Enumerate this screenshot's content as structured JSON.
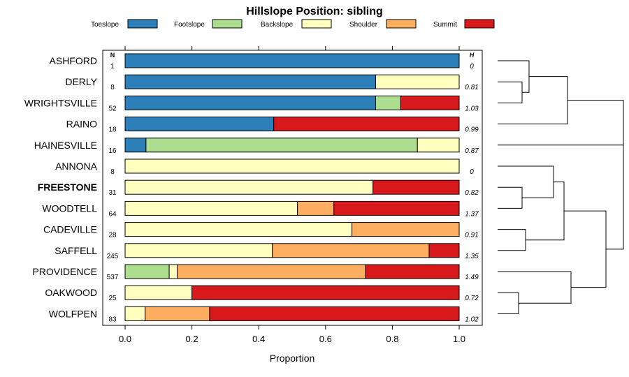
{
  "chart_data": {
    "type": "bar",
    "stacked": true,
    "orientation": "horizontal",
    "title": "Hillslope Position: sibling",
    "xlabel": "Proportion",
    "xlim": [
      0,
      1
    ],
    "xticks": [
      "0.0",
      "0.2",
      "0.4",
      "0.6",
      "0.8",
      "1.0"
    ],
    "n_header": "N",
    "h_header": "H",
    "legend_position": "top",
    "series": [
      {
        "name": "Toeslope",
        "color": "#2c7fb8"
      },
      {
        "name": "Footslope",
        "color": "#addd8e"
      },
      {
        "name": "Backslope",
        "color": "#ffffbf"
      },
      {
        "name": "Shoulder",
        "color": "#fdae61"
      },
      {
        "name": "Summit",
        "color": "#d7191c"
      }
    ],
    "categories": [
      {
        "name": "ASHFORD",
        "n": "1",
        "h": "0",
        "bold": false,
        "values": [
          1.0,
          0,
          0,
          0,
          0
        ]
      },
      {
        "name": "DERLY",
        "n": "8",
        "h": "0.81",
        "bold": false,
        "values": [
          0.75,
          0,
          0.25,
          0,
          0
        ]
      },
      {
        "name": "WRIGHTSVILLE",
        "n": "52",
        "h": "1.03",
        "bold": false,
        "values": [
          0.75,
          0.075,
          0,
          0,
          0.175
        ]
      },
      {
        "name": "RAINO",
        "n": "18",
        "h": "0.99",
        "bold": false,
        "values": [
          0.445,
          0,
          0,
          0,
          0.555
        ]
      },
      {
        "name": "HAINESVILLE",
        "n": "16",
        "h": "0.87",
        "bold": false,
        "values": [
          0.0625,
          0.8125,
          0.125,
          0,
          0
        ]
      },
      {
        "name": "ANNONA",
        "n": "8",
        "h": "0",
        "bold": false,
        "values": [
          0,
          0,
          1.0,
          0,
          0
        ]
      },
      {
        "name": "FREESTONE",
        "n": "31",
        "h": "0.82",
        "bold": true,
        "values": [
          0,
          0,
          0.742,
          0,
          0.258
        ]
      },
      {
        "name": "WOODTELL",
        "n": "64",
        "h": "1.37",
        "bold": false,
        "values": [
          0,
          0,
          0.516,
          0.109,
          0.375
        ]
      },
      {
        "name": "CADEVILLE",
        "n": "28",
        "h": "0.91",
        "bold": false,
        "values": [
          0,
          0,
          0.679,
          0.321,
          0
        ]
      },
      {
        "name": "SAFFELL",
        "n": "245",
        "h": "1.35",
        "bold": false,
        "values": [
          0,
          0,
          0.441,
          0.469,
          0.09
        ]
      },
      {
        "name": "PROVIDENCE",
        "n": "537",
        "h": "1.49",
        "bold": false,
        "values": [
          0,
          0.132,
          0.024,
          0.564,
          0.28
        ]
      },
      {
        "name": "OAKWOOD",
        "n": "25",
        "h": "0.72",
        "bold": false,
        "values": [
          0,
          0,
          0.2,
          0,
          0.8
        ]
      },
      {
        "name": "WOLFPEN",
        "n": "83",
        "h": "1.02",
        "bold": false,
        "values": [
          0,
          0,
          0.06,
          0.193,
          0.747
        ]
      }
    ],
    "dendrogram": {
      "leaves": [
        "ASHFORD",
        "DERLY",
        "WRIGHTSVILLE",
        "RAINO",
        "HAINESVILLE",
        "ANNONA",
        "FREESTONE",
        "WOODTELL",
        "CADEVILLE",
        "SAFFELL",
        "PROVIDENCE",
        "OAKWOOD",
        "WOLFPEN"
      ],
      "merges": [
        {
          "a": 1,
          "b": 2,
          "height": 0.035
        },
        {
          "a": 0,
          "b": -1,
          "height": 0.045
        },
        {
          "a": 3,
          "b": -2,
          "height": 0.1
        },
        {
          "a": 4,
          "b": -3,
          "height": 0.18
        },
        {
          "a": 6,
          "b": 7,
          "height": 0.035
        },
        {
          "a": 5,
          "b": -5,
          "height": 0.08
        },
        {
          "a": 8,
          "b": 9,
          "height": 0.04
        },
        {
          "a": -6,
          "b": -7,
          "height": 0.095
        },
        {
          "a": 11,
          "b": 12,
          "height": 0.03
        },
        {
          "a": 10,
          "b": -9,
          "height": 0.105
        },
        {
          "a": -8,
          "b": -10,
          "height": 0.155
        },
        {
          "a": -4,
          "b": -11,
          "height": 0.18
        }
      ]
    }
  }
}
